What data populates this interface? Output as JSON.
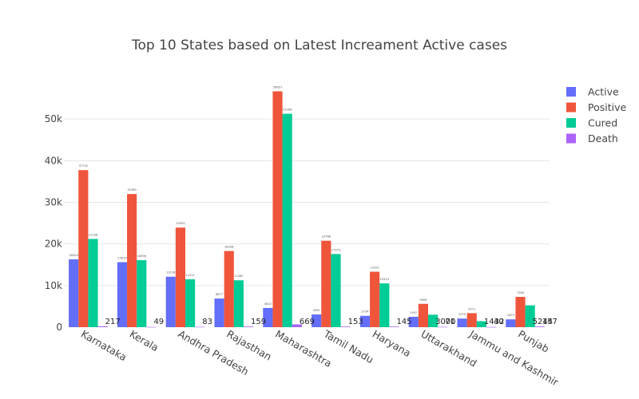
{
  "chart_data": {
    "type": "bar",
    "title": "Top 10 States based on Latest Increament Active cases",
    "xlabel": "",
    "ylabel": "",
    "ylim": [
      0,
      60000
    ],
    "yticks": [
      0,
      10000,
      20000,
      30000,
      40000,
      50000
    ],
    "ytick_labels": [
      "0",
      "10k",
      "20k",
      "30k",
      "40k",
      "50k"
    ],
    "grid": true,
    "legend_position": "top-right",
    "categories": [
      "Karnataka",
      "Kerala",
      "Andhra Pradesh",
      "Rajasthan",
      "Maharashtra",
      "Tamil Nadu",
      "Haryana",
      "Uttarakhand",
      "Jammu and Kashmir",
      "Punjab"
    ],
    "series": [
      {
        "name": "Active",
        "color": "#636efa",
        "values": [
          16300,
          15619,
          12126,
          6877,
          4622,
          3050,
          2734,
          2497,
          2070,
          1879
        ]
      },
      {
        "name": "Positive",
        "color": "#ef553b",
        "values": [
          37732,
          31989,
          23920,
          18298,
          56657,
          20768,
          13322,
          5606,
          3371,
          7280
        ]
      },
      {
        "name": "Cured",
        "color": "#00cc96",
        "values": [
          21198,
          16096,
          11511,
          11262,
          51266,
          17575,
          10523,
          3000,
          1432,
          5244
        ]
      },
      {
        "name": "Death",
        "color": "#ab63fa",
        "values": [
          217,
          49,
          83,
          159,
          669,
          153,
          145,
          71,
          40,
          157
        ]
      }
    ],
    "data_labels": [
      [
        "16300",
        "37732",
        "21198",
        "217"
      ],
      [
        "15619",
        "31989",
        "16096",
        "49"
      ],
      [
        "12126",
        "23920",
        "11511",
        "83"
      ],
      [
        "6877",
        "18298",
        "11262",
        "159"
      ],
      [
        "4622",
        "56657",
        "51266",
        "669"
      ],
      [
        "3050",
        "20768",
        "17575",
        "153"
      ],
      [
        "2734",
        "13322",
        "10523",
        "145"
      ],
      [
        "2497",
        "5606",
        "3000",
        "71"
      ],
      [
        "2070",
        "3371",
        "1432",
        "40"
      ],
      [
        "1879",
        "7280",
        "5244",
        "157"
      ]
    ]
  }
}
